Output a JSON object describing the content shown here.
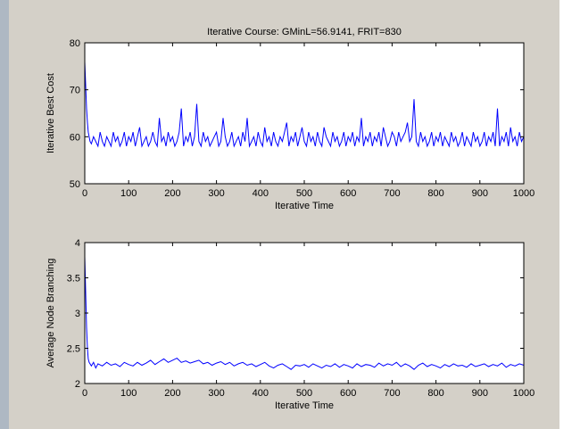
{
  "chart_data": [
    {
      "type": "line",
      "title": "Iterative Course: GMinL=56.9141, FRIT=830",
      "xlabel": "Iterative Time",
      "ylabel": "Iterative Best Cost",
      "xlim": [
        0,
        1000
      ],
      "ylim": [
        50,
        80
      ],
      "xticks": [
        0,
        100,
        200,
        300,
        400,
        500,
        600,
        700,
        800,
        900,
        1000
      ],
      "yticks": [
        50,
        60,
        70,
        80
      ],
      "grid": false,
      "line_color": "#0000ff",
      "series": [
        {
          "x": [
            0,
            2,
            4,
            6,
            8,
            10,
            12,
            15,
            20,
            25,
            30,
            35,
            40,
            45,
            50,
            55,
            60,
            65,
            70,
            75,
            80,
            85,
            90,
            95,
            100,
            105,
            110,
            115,
            120,
            125,
            130,
            135,
            140,
            145,
            150,
            155,
            160,
            165,
            170,
            175,
            180,
            185,
            190,
            195,
            200,
            205,
            210,
            215,
            220,
            225,
            230,
            235,
            240,
            245,
            250,
            255,
            260,
            265,
            270,
            275,
            280,
            285,
            290,
            295,
            300,
            305,
            310,
            315,
            320,
            325,
            330,
            335,
            340,
            345,
            350,
            355,
            360,
            365,
            370,
            375,
            380,
            385,
            390,
            395,
            400,
            405,
            410,
            415,
            420,
            425,
            430,
            435,
            440,
            445,
            450,
            455,
            460,
            465,
            470,
            475,
            480,
            485,
            490,
            495,
            500,
            505,
            510,
            515,
            520,
            525,
            530,
            535,
            540,
            545,
            550,
            555,
            560,
            565,
            570,
            575,
            580,
            585,
            590,
            595,
            600,
            605,
            610,
            615,
            620,
            625,
            630,
            635,
            640,
            645,
            650,
            655,
            660,
            665,
            670,
            675,
            680,
            685,
            690,
            695,
            700,
            705,
            710,
            715,
            720,
            725,
            730,
            735,
            740,
            745,
            750,
            755,
            760,
            765,
            770,
            775,
            780,
            785,
            790,
            795,
            800,
            805,
            810,
            815,
            820,
            825,
            830,
            835,
            840,
            845,
            850,
            855,
            860,
            865,
            870,
            875,
            880,
            885,
            890,
            895,
            900,
            905,
            910,
            915,
            920,
            925,
            930,
            935,
            940,
            945,
            950,
            955,
            960,
            965,
            970,
            975,
            980,
            985,
            990,
            995,
            1000
          ],
          "y": [
            76,
            71,
            66,
            63,
            61,
            60,
            59,
            58.5,
            60,
            59,
            58,
            61,
            59,
            58,
            60,
            59,
            58,
            61,
            59,
            60,
            58,
            59,
            61,
            58,
            60,
            59,
            61,
            58,
            60,
            62,
            58,
            59,
            60,
            58,
            59,
            61,
            59,
            58,
            64,
            59,
            60,
            58,
            61,
            59,
            60,
            58,
            59,
            61,
            66,
            58,
            60,
            59,
            61,
            58,
            60,
            67,
            59,
            58,
            61,
            59,
            60,
            58,
            59,
            60,
            61,
            58,
            59,
            64,
            60,
            58,
            59,
            61,
            58,
            59,
            60,
            58,
            61,
            59,
            64,
            58,
            59,
            60,
            58,
            61,
            59,
            58,
            62,
            59,
            60,
            58,
            61,
            59,
            58,
            60,
            59,
            61,
            63,
            58,
            60,
            59,
            61,
            58,
            60,
            62,
            59,
            58,
            61,
            59,
            60,
            58,
            61,
            59,
            58,
            62,
            60,
            59,
            58,
            61,
            59,
            60,
            58,
            59,
            61,
            58,
            60,
            59,
            61,
            58,
            60,
            59,
            64,
            58,
            60,
            59,
            61,
            58,
            60,
            59,
            61,
            58,
            62,
            60,
            58,
            59,
            61,
            60,
            58,
            61,
            59,
            60,
            61,
            63,
            59,
            60,
            68,
            59,
            58,
            61,
            59,
            60,
            58,
            59,
            61,
            58,
            60,
            59,
            61,
            58,
            60,
            59,
            58,
            61,
            59,
            60,
            58,
            59,
            61,
            58,
            60,
            59,
            58,
            61,
            59,
            60,
            58,
            59,
            61,
            58,
            60,
            59,
            61,
            58,
            66,
            58,
            60,
            59,
            61,
            58,
            62,
            59,
            60,
            58,
            61,
            59,
            60
          ]
        }
      ]
    },
    {
      "type": "line",
      "title": "",
      "xlabel": "Iterative Time",
      "ylabel": "Average Node Branching",
      "xlim": [
        0,
        1000
      ],
      "ylim": [
        2,
        4
      ],
      "xticks": [
        0,
        100,
        200,
        300,
        400,
        500,
        600,
        700,
        800,
        900,
        1000
      ],
      "yticks": [
        2,
        2.5,
        3,
        3.5,
        4
      ],
      "grid": false,
      "line_color": "#0000ff",
      "series": [
        {
          "x": [
            0,
            2,
            4,
            6,
            8,
            10,
            15,
            20,
            25,
            30,
            40,
            50,
            60,
            70,
            80,
            90,
            100,
            110,
            120,
            130,
            140,
            150,
            160,
            170,
            180,
            190,
            200,
            210,
            220,
            230,
            240,
            250,
            260,
            270,
            280,
            290,
            300,
            310,
            320,
            330,
            340,
            350,
            360,
            370,
            380,
            390,
            400,
            410,
            420,
            430,
            440,
            450,
            460,
            470,
            480,
            490,
            500,
            510,
            520,
            530,
            540,
            550,
            560,
            570,
            580,
            590,
            600,
            610,
            620,
            630,
            640,
            650,
            660,
            670,
            680,
            690,
            700,
            710,
            720,
            730,
            740,
            750,
            760,
            770,
            780,
            790,
            800,
            810,
            820,
            830,
            840,
            850,
            860,
            870,
            880,
            890,
            900,
            910,
            920,
            930,
            940,
            950,
            960,
            970,
            980,
            990,
            1000
          ],
          "y": [
            3.8,
            3.3,
            2.8,
            2.5,
            2.35,
            2.3,
            2.25,
            2.3,
            2.22,
            2.28,
            2.25,
            2.3,
            2.26,
            2.28,
            2.24,
            2.3,
            2.27,
            2.25,
            2.3,
            2.26,
            2.29,
            2.33,
            2.27,
            2.31,
            2.35,
            2.3,
            2.33,
            2.36,
            2.3,
            2.32,
            2.29,
            2.31,
            2.33,
            2.28,
            2.3,
            2.26,
            2.29,
            2.31,
            2.27,
            2.3,
            2.25,
            2.28,
            2.3,
            2.26,
            2.28,
            2.24,
            2.27,
            2.3,
            2.25,
            2.22,
            2.26,
            2.28,
            2.24,
            2.2,
            2.26,
            2.25,
            2.27,
            2.23,
            2.28,
            2.25,
            2.22,
            2.26,
            2.24,
            2.28,
            2.23,
            2.27,
            2.25,
            2.22,
            2.28,
            2.24,
            2.27,
            2.26,
            2.23,
            2.29,
            2.25,
            2.28,
            2.26,
            2.3,
            2.24,
            2.28,
            2.25,
            2.2,
            2.26,
            2.29,
            2.24,
            2.27,
            2.25,
            2.22,
            2.27,
            2.24,
            2.28,
            2.25,
            2.26,
            2.23,
            2.28,
            2.24,
            2.26,
            2.28,
            2.24,
            2.27,
            2.25,
            2.29,
            2.23,
            2.27,
            2.25,
            2.28,
            2.26
          ]
        }
      ]
    }
  ]
}
